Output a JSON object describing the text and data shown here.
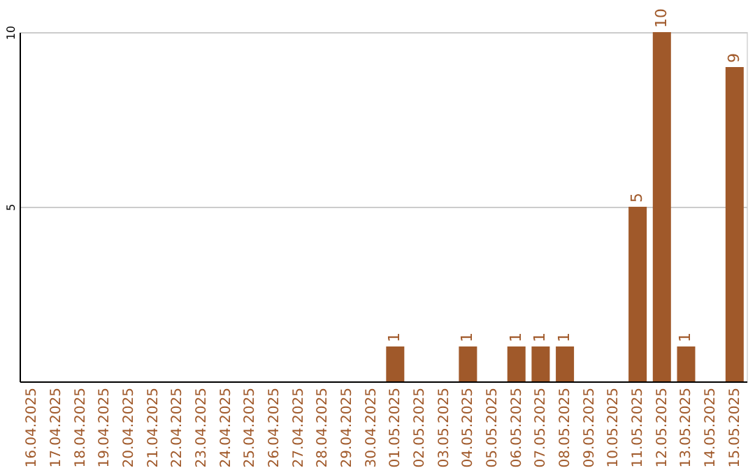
{
  "chart_data": {
    "type": "bar",
    "categories": [
      "16.04.2025",
      "17.04.2025",
      "18.04.2025",
      "19.04.2025",
      "20.04.2025",
      "21.04.2025",
      "22.04.2025",
      "23.04.2025",
      "24.04.2025",
      "25.04.2025",
      "26.04.2025",
      "27.04.2025",
      "28.04.2025",
      "29.04.2025",
      "30.04.2025",
      "01.05.2025",
      "02.05.2025",
      "03.05.2025",
      "04.05.2025",
      "05.05.2025",
      "06.05.2025",
      "07.05.2025",
      "08.05.2025",
      "09.05.2025",
      "10.05.2025",
      "11.05.2025",
      "12.05.2025",
      "13.05.2025",
      "14.05.2025",
      "15.05.2025"
    ],
    "values": [
      0,
      0,
      0,
      0,
      0,
      0,
      0,
      0,
      0,
      0,
      0,
      0,
      0,
      0,
      0,
      1,
      0,
      0,
      1,
      0,
      1,
      1,
      1,
      0,
      0,
      5,
      10,
      1,
      0,
      9
    ],
    "value_labels": [
      null,
      null,
      null,
      null,
      null,
      null,
      null,
      null,
      null,
      null,
      null,
      null,
      null,
      null,
      null,
      "1",
      null,
      null,
      "1",
      null,
      "1",
      "1",
      "1",
      null,
      null,
      "5",
      "10",
      "1",
      null,
      "9"
    ],
    "color": "#a0592a",
    "ylim": [
      0,
      10
    ],
    "yticks": [
      5,
      10
    ],
    "grid": "y"
  }
}
